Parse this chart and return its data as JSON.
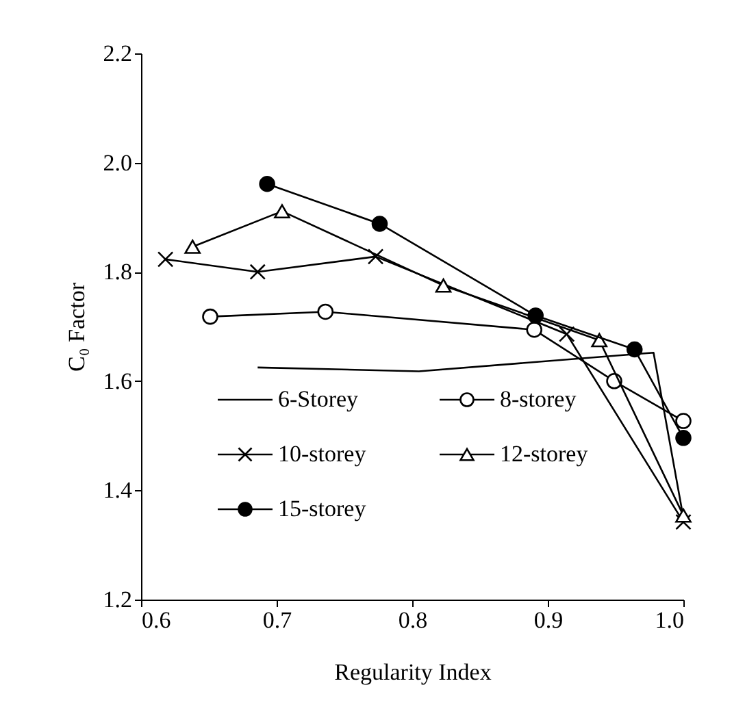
{
  "chart_data": {
    "type": "line",
    "xlabel": "Regularity Index",
    "ylabel": "C₀ Factor",
    "xlim": [
      0.6,
      1.0
    ],
    "xticks": [
      0.6,
      0.7,
      0.8,
      0.9,
      {
        "value": 1.0,
        "label": "1.0"
      }
    ],
    "ylim": [
      1.2,
      2.2
    ],
    "yticks": [
      1.2,
      1.4,
      1.6,
      1.8,
      {
        "value": 2.0,
        "label": "2.0"
      },
      2.2
    ],
    "grid": false,
    "legend": "bottom left",
    "line_style": "solid",
    "series": [
      {
        "name": "6-Storey",
        "color": "#000000",
        "marker": "none",
        "x": [
          0.686,
          0.805,
          0.978,
          1.0
        ],
        "values": [
          1.625,
          1.618,
          1.652,
          1.35
        ]
      },
      {
        "name": "8-storey",
        "color": "#000000",
        "marker": "circle",
        "x": [
          0.651,
          0.736,
          0.89,
          0.949,
          1.0
        ],
        "values": [
          1.718,
          1.727,
          1.694,
          1.6,
          1.527
        ]
      },
      {
        "name": "10-storey",
        "color": "#000000",
        "marker": "cross",
        "x": [
          0.618,
          0.686,
          0.773,
          0.914,
          1.0
        ],
        "values": [
          1.823,
          1.8,
          1.828,
          1.686,
          1.342
        ]
      },
      {
        "name": "12-storey",
        "color": "#000000",
        "marker": "triangle",
        "x": [
          0.638,
          0.704,
          0.823,
          0.938,
          1.0
        ],
        "values": [
          1.846,
          1.911,
          1.775,
          1.675,
          1.354
        ]
      },
      {
        "name": "15-storey",
        "color": "#000000",
        "marker": "circle",
        "x": [
          0.693,
          0.776,
          0.891,
          0.964,
          1.0
        ],
        "values": [
          1.961,
          1.888,
          1.72,
          1.658,
          1.496
        ]
      }
    ]
  }
}
